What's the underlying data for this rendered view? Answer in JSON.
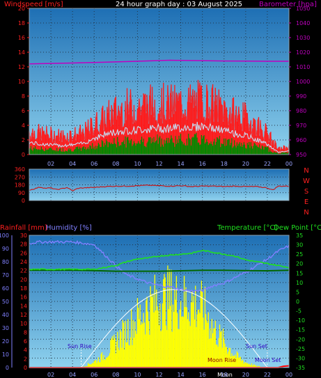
{
  "header": {
    "title": "24 hour graph day : 03 August 2025",
    "wind_label": "Windspeed [m/s]",
    "baro_label": "Barometer [hpa]",
    "rain_label": "Rainfall [mm]",
    "humidity_label": "Humidity [%]",
    "temp_label": "Temperature [°C]",
    "dew_label": "Dew Point [°C]"
  },
  "colors": {
    "sky_top": "#1e6fb4",
    "sky_bottom": "#8fd2ee",
    "wind": "#ff1a1a",
    "wind_avg": "#c0e8ff",
    "wind_low": "#008a00",
    "baro": "#c000c0",
    "direction": "#cc1010",
    "humidity": "#8080ff",
    "temperature": "#20e020",
    "dewpoint": "#006600",
    "rain": "#ff0000",
    "solar": "#ffff00",
    "sun_curve": "#ffffff",
    "annotation": "#3000c0"
  },
  "chart_data": [
    {
      "type": "line",
      "name": "wind-baro-panel",
      "x_ticks": [
        "02",
        "04",
        "06",
        "08",
        "10",
        "12",
        "14",
        "16",
        "18",
        "20",
        "22",
        "00"
      ],
      "y_left_ticks": [
        0,
        2,
        4,
        6,
        8,
        10,
        12,
        14,
        16,
        18,
        20
      ],
      "y_right_ticks": [
        950,
        960,
        970,
        980,
        990,
        1000,
        1010,
        1020,
        1030,
        1040,
        1050
      ],
      "ylim_left": [
        0,
        20
      ],
      "ylim_right": [
        950,
        1050
      ],
      "gust_hours": [
        0,
        1,
        2,
        3,
        4,
        5,
        6,
        7,
        8,
        9,
        10,
        11,
        12,
        13,
        14,
        15,
        16,
        17,
        18,
        19,
        20,
        21,
        22,
        22.5,
        23,
        24
      ],
      "gust_values": [
        3.5,
        3.2,
        3.0,
        2.8,
        3.0,
        3.2,
        4.5,
        5.5,
        6.5,
        7.0,
        7.2,
        7.5,
        7.6,
        7.5,
        7.6,
        7.8,
        8.0,
        7.5,
        6.8,
        6.0,
        5.5,
        4.5,
        3.2,
        2.0,
        0.8,
        1.2
      ],
      "avg_values": [
        1.6,
        1.4,
        1.3,
        1.2,
        1.3,
        1.5,
        2.2,
        2.7,
        3.0,
        3.2,
        3.3,
        3.4,
        3.5,
        3.5,
        3.6,
        3.7,
        3.8,
        3.5,
        3.2,
        2.8,
        2.5,
        2.0,
        1.4,
        0.8,
        0.3,
        0.5
      ],
      "baro_hours": [
        0,
        2,
        4,
        6,
        8,
        10,
        12,
        13,
        14,
        16,
        18,
        20,
        22,
        24
      ],
      "baro_values": [
        1012,
        1012.3,
        1012.6,
        1013,
        1013.4,
        1013.8,
        1014.3,
        1014.5,
        1014.4,
        1014.2,
        1014,
        1013.9,
        1013.8,
        1013.8
      ]
    },
    {
      "type": "line",
      "name": "direction-panel",
      "y_ticks": [
        0,
        90,
        180,
        270,
        360
      ],
      "ylim": [
        0,
        360
      ],
      "compass": [
        "N",
        "W",
        "S",
        "E",
        "N"
      ],
      "hours": [
        0,
        0.5,
        1,
        1.5,
        2,
        2.5,
        3,
        3.5,
        4,
        4.5,
        5,
        6,
        7,
        8,
        9,
        10,
        11,
        12,
        13,
        14,
        15,
        16,
        17,
        18,
        19,
        20,
        21,
        22,
        22.5,
        23,
        23.5,
        24
      ],
      "values": [
        120,
        135,
        155,
        140,
        145,
        125,
        135,
        150,
        110,
        140,
        145,
        150,
        160,
        165,
        165,
        170,
        175,
        170,
        165,
        170,
        160,
        165,
        165,
        160,
        165,
        160,
        160,
        145,
        120,
        165,
        165,
        165
      ]
    },
    {
      "type": "line",
      "name": "temp-humidity-rain-panel",
      "y_rain_ticks": [
        0,
        2,
        4,
        6,
        8,
        10,
        12,
        14,
        16,
        18,
        20,
        22,
        24,
        26,
        28,
        30
      ],
      "y_hum_ticks": [
        0,
        10,
        20,
        30,
        40,
        50,
        60,
        70,
        80,
        90,
        100
      ],
      "y_temp_ticks": [
        -35,
        -30,
        -25,
        -20,
        -15,
        -10,
        -5,
        0,
        5,
        10,
        15,
        20,
        25,
        30,
        35
      ],
      "ylim_rain": [
        0,
        30
      ],
      "ylim_temp": [
        -35,
        35
      ],
      "hum_hours": [
        0,
        1,
        2,
        3,
        4,
        5,
        6,
        7,
        8,
        9,
        10,
        11,
        12,
        13,
        14,
        15,
        16,
        17,
        18,
        19,
        20,
        21,
        22,
        23,
        24
      ],
      "hum_values": [
        94,
        95,
        95,
        95,
        95,
        94,
        93,
        85,
        77,
        70,
        67,
        64,
        62,
        61,
        59,
        58,
        58,
        62,
        64,
        68,
        72,
        77,
        82,
        88,
        92
      ],
      "temp_hours": [
        0,
        2,
        4,
        6,
        7,
        8,
        9,
        10,
        11,
        12,
        13,
        14,
        15,
        16,
        17,
        18,
        19,
        20,
        21,
        22,
        23,
        24
      ],
      "temp_values": [
        17,
        17,
        17,
        17,
        18,
        19,
        21,
        22.5,
        23,
        24,
        24.5,
        25,
        25.5,
        27,
        26,
        25,
        24,
        22,
        21,
        20,
        19,
        18
      ],
      "dew_hours": [
        0,
        2,
        4,
        6,
        8,
        10,
        12,
        14,
        16,
        18,
        20,
        22,
        24
      ],
      "dew_values": [
        16.5,
        16.5,
        16.5,
        16.3,
        16,
        16,
        16,
        16.2,
        16.5,
        16.5,
        16.3,
        16.2,
        16.5
      ],
      "rain_hours": [
        0,
        16,
        17,
        18,
        19,
        20,
        21,
        22,
        23,
        23.5,
        24
      ],
      "rain_values": [
        0,
        0,
        0,
        0,
        0,
        0,
        0,
        0,
        0,
        0.3,
        0.4
      ],
      "solar_hours": [
        0,
        4.8,
        6,
        7,
        8,
        9,
        10,
        11,
        12,
        12.5,
        13,
        13.5,
        14,
        15,
        16,
        16.5,
        17,
        18,
        19,
        20,
        21,
        22,
        24
      ],
      "solar_frac": [
        0,
        0,
        0.08,
        0.17,
        0.35,
        0.5,
        0.67,
        0.82,
        0.92,
        0.95,
        0.95,
        0.92,
        0.9,
        0.9,
        0.8,
        0.7,
        0.53,
        0.35,
        0.17,
        0.07,
        0.02,
        0,
        0
      ],
      "sun_rise": 4.8,
      "sun_set": 22.0,
      "sun_rise_label": "Sun Rise",
      "sun_set_label": "Sun Set",
      "moon_rise_label": "Moon Rise",
      "moon_set_label": "Moon Set",
      "moon_mark_label": "Moon",
      "x_ticks": [
        "02",
        "04",
        "06",
        "08",
        "10",
        "12",
        "14",
        "16",
        "18",
        "20",
        "22",
        "00"
      ]
    }
  ]
}
